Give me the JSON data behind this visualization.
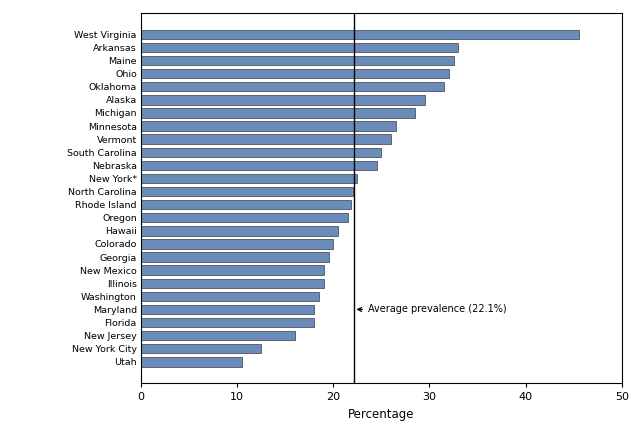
{
  "states": [
    "West Virginia",
    "Arkansas",
    "Maine",
    "Ohio",
    "Oklahoma",
    "Alaska",
    "Michigan",
    "Minnesota",
    "Vermont",
    "South Carolina",
    "Nebraska",
    "New York*",
    "North Carolina",
    "Rhode Island",
    "Oregon",
    "Hawaii",
    "Colorado",
    "Georgia",
    "New Mexico",
    "Illinois",
    "Washington",
    "Maryland",
    "Florida",
    "New Jersey",
    "New York City",
    "Utah"
  ],
  "values": [
    45.5,
    33.0,
    32.5,
    32.0,
    31.5,
    29.5,
    28.5,
    26.5,
    26.0,
    25.0,
    24.5,
    22.5,
    22.0,
    21.8,
    21.5,
    20.5,
    20.0,
    19.5,
    19.0,
    19.0,
    18.5,
    18.0,
    18.0,
    16.0,
    12.5,
    10.5
  ],
  "bar_color": "#6b8cba",
  "bar_edge_color": "#1a1a1a",
  "avg_prevalence": 22.1,
  "avg_label": "Average prevalence (22.1%)",
  "xlabel": "Percentage",
  "xlim": [
    0,
    50
  ],
  "xticks": [
    0,
    10,
    20,
    30,
    40,
    50
  ],
  "background_color": "#ffffff"
}
